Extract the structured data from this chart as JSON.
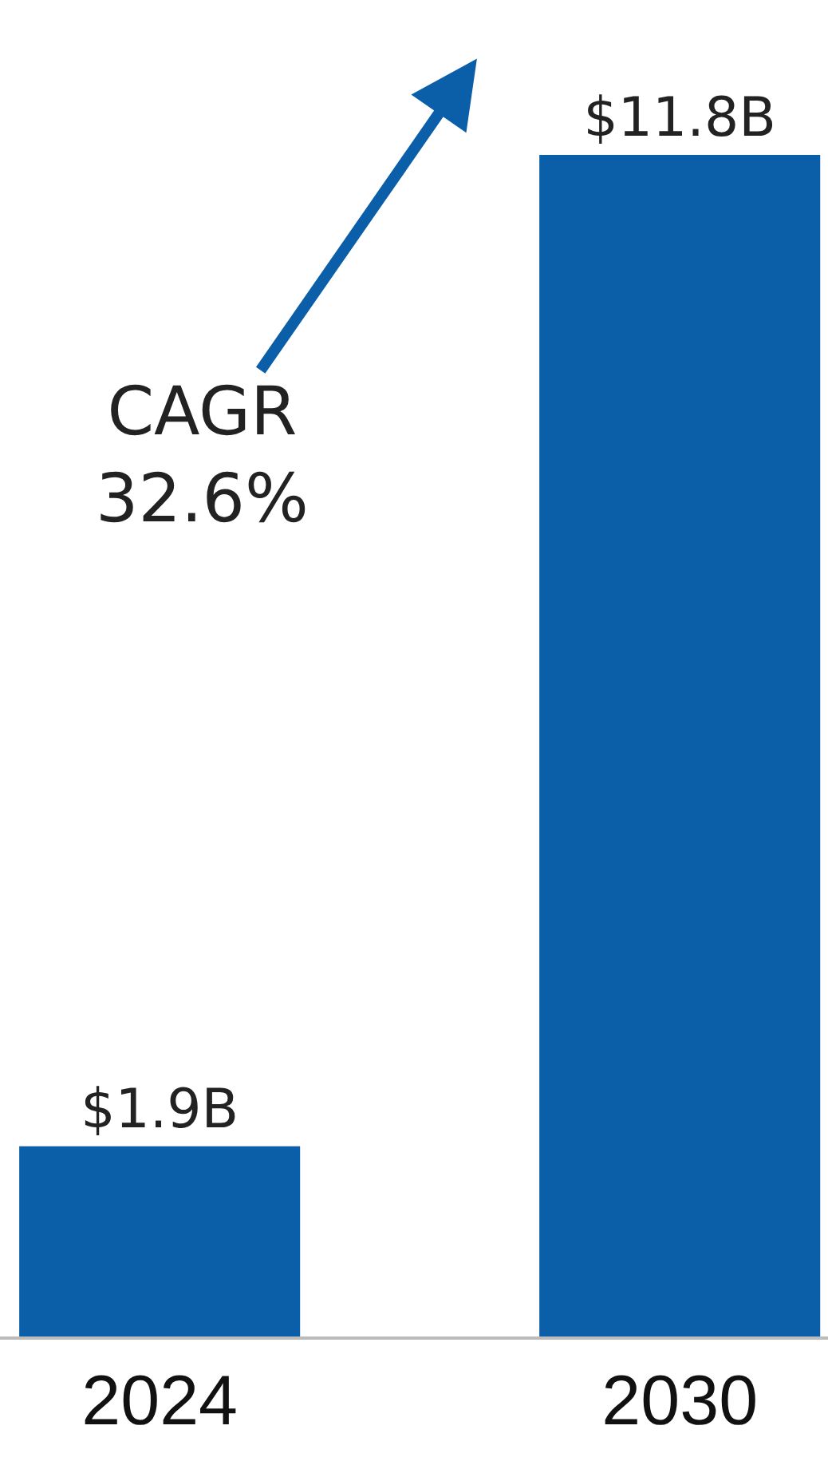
{
  "chart_data": {
    "type": "bar",
    "categories": [
      "2024",
      "2030"
    ],
    "values": [
      1.9,
      11.8
    ],
    "value_labels": [
      "$1.9B",
      "$11.8B"
    ],
    "color": "#0b5ea8",
    "annotations": [
      "CAGR\n32.6%"
    ],
    "legend": false
  }
}
